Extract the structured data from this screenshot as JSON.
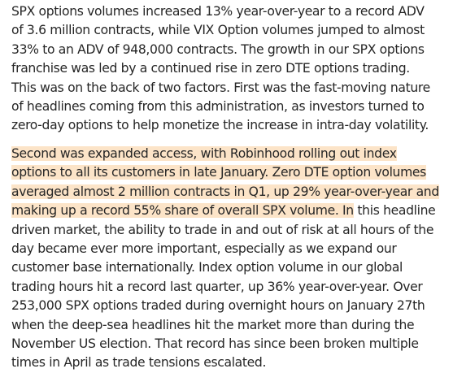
{
  "paragraph1": {
    "lines": [
      "SPX options volumes increased 13% year-over-year to a record ADV",
      "of 3.6 million contracts, while VIX Option volumes jumped to almost",
      "33% to an ADV of 948,000 contracts. The growth in our SPX options",
      "franchise was led by a continued rise in zero DTE options trading.",
      "This was on the back of two factors. First was the fast-moving nature",
      "of headlines coming from this administration, as investors turned to",
      "zero-day options to help monetize the increase in intra-day volatility."
    ]
  },
  "paragraph2": {
    "highlighted_lines": [
      "Second was expanded access, with Robinhood rolling out index",
      "options to all its customers in late January. Zero DTE option volumes",
      "averaged almost 2 million contracts in Q1, up 29% year-over-year and"
    ],
    "mixed_line": {
      "highlighted": "making up a record 55% share of overall SPX volume. In",
      "plain": " this headline"
    },
    "plain_lines": [
      "driven market, the ability to trade in and out of risk at all hours of the",
      "day became ever more important, especially as we expand our",
      "customer base internationally. Index option volume in our global",
      "trading hours hit a record last quarter, up 36% year-over-year. Over",
      "253,000 SPX options traded during overnight hours on January 27th",
      "when the deep-sea headlines hit the market more than during the",
      "November US election. That record has since been broken multiple",
      "times in April as trade tensions escalated."
    ]
  },
  "colors": {
    "text": "#262626",
    "highlight": "#fce4c8",
    "background": "#ffffff"
  }
}
